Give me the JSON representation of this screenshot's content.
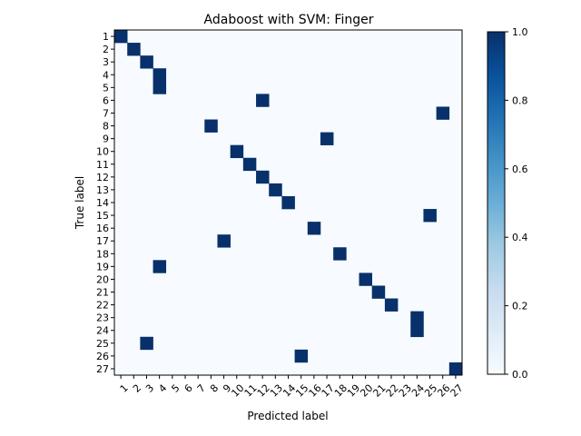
{
  "chart_data": {
    "type": "heatmap",
    "title": "Adaboost with SVM: Finger",
    "xlabel": "Predicted label",
    "ylabel": "True label",
    "labels": [
      "1",
      "2",
      "3",
      "4",
      "5",
      "6",
      "7",
      "8",
      "9",
      "10",
      "11",
      "12",
      "13",
      "14",
      "15",
      "16",
      "17",
      "18",
      "19",
      "20",
      "21",
      "22",
      "23",
      "24",
      "25",
      "26",
      "27"
    ],
    "matrix_ones": [
      {
        "true": "1",
        "pred": "1"
      },
      {
        "true": "2",
        "pred": "2"
      },
      {
        "true": "3",
        "pred": "3"
      },
      {
        "true": "4",
        "pred": "4"
      },
      {
        "true": "5",
        "pred": "4"
      },
      {
        "true": "6",
        "pred": "12"
      },
      {
        "true": "7",
        "pred": "26"
      },
      {
        "true": "8",
        "pred": "8"
      },
      {
        "true": "9",
        "pred": "17"
      },
      {
        "true": "10",
        "pred": "10"
      },
      {
        "true": "11",
        "pred": "11"
      },
      {
        "true": "12",
        "pred": "12"
      },
      {
        "true": "13",
        "pred": "13"
      },
      {
        "true": "14",
        "pred": "14"
      },
      {
        "true": "15",
        "pred": "25"
      },
      {
        "true": "16",
        "pred": "16"
      },
      {
        "true": "17",
        "pred": "9"
      },
      {
        "true": "18",
        "pred": "18"
      },
      {
        "true": "19",
        "pred": "4"
      },
      {
        "true": "20",
        "pred": "20"
      },
      {
        "true": "21",
        "pred": "21"
      },
      {
        "true": "22",
        "pred": "22"
      },
      {
        "true": "23",
        "pred": "24"
      },
      {
        "true": "24",
        "pred": "24"
      },
      {
        "true": "25",
        "pred": "3"
      },
      {
        "true": "26",
        "pred": "15"
      },
      {
        "true": "27",
        "pred": "27"
      }
    ],
    "value_range": [
      0,
      1
    ],
    "colormap": "Blues",
    "colorbar_ticks": [
      "0.0",
      "0.2",
      "0.4",
      "0.6",
      "0.8",
      "1.0"
    ],
    "low_color": "#f7fbff",
    "high_color": "#08306b"
  }
}
